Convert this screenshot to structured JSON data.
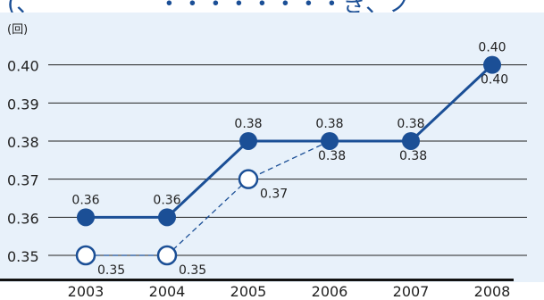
{
  "title_fragment": "(、                ・・・・・・・・ぎ、ノ",
  "chart_data": {
    "type": "line",
    "unit_label": "(回)",
    "categories": [
      "2003",
      "2004",
      "2005",
      "2006",
      "2007",
      "2008"
    ],
    "ylim": [
      0.345,
      0.41
    ],
    "y_ticks": [
      "0.35",
      "0.36",
      "0.37",
      "0.38",
      "0.39",
      "0.40"
    ],
    "y_tick_values": [
      0.35,
      0.36,
      0.37,
      0.38,
      0.39,
      0.4
    ],
    "grid": true,
    "series": [
      {
        "style": "solid-filled",
        "color": "#1b4f96",
        "values": [
          0.36,
          0.36,
          0.38,
          0.38,
          0.38,
          0.4
        ],
        "labels": [
          "0.36",
          "0.36",
          "0.38",
          "0.38",
          "0.38",
          "0.40"
        ],
        "label_position": "above"
      },
      {
        "style": "dashed-hollow",
        "color": "#1b4f96",
        "values": [
          0.35,
          0.35,
          0.37,
          0.38,
          0.38,
          0.4
        ],
        "labels": [
          "0.35",
          "0.35",
          "0.37",
          "0.38",
          "0.38",
          "0.40"
        ],
        "label_position": "below-right"
      }
    ]
  }
}
